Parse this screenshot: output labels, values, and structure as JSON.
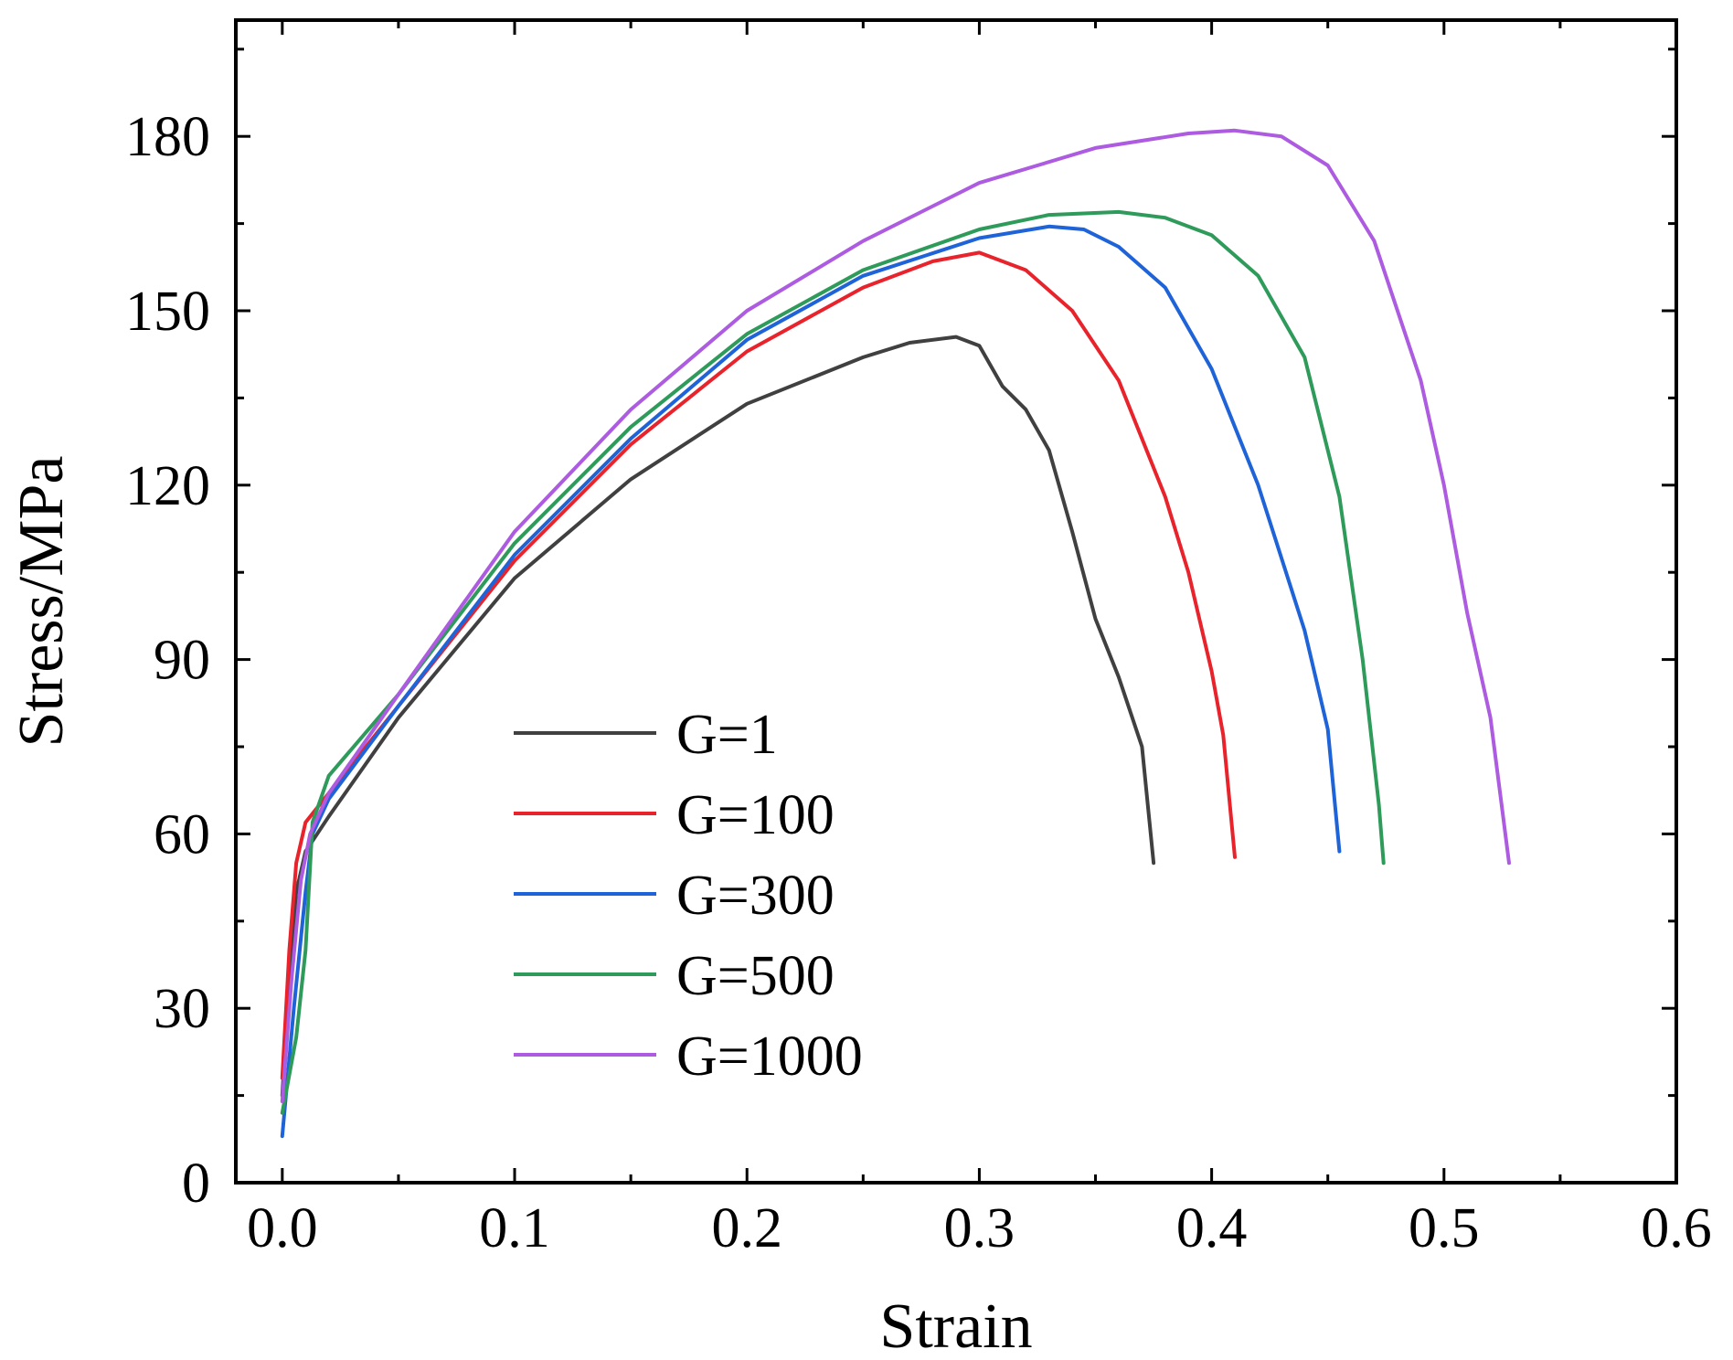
{
  "chart_data": {
    "type": "line",
    "title": "",
    "xlabel": "Strain",
    "ylabel": "Stress/MPa",
    "xlim": [
      -0.02,
      0.6
    ],
    "ylim": [
      0,
      200
    ],
    "xticks": [
      0.0,
      0.1,
      0.2,
      0.3,
      0.4,
      0.5,
      0.6
    ],
    "xtick_labels": [
      "0.0",
      "0.1",
      "0.2",
      "0.3",
      "0.4",
      "0.5",
      "0.6"
    ],
    "xminor": [
      0.05,
      0.15,
      0.25,
      0.35,
      0.45,
      0.55
    ],
    "yticks": [
      0,
      30,
      60,
      90,
      120,
      150,
      180
    ],
    "ytick_labels": [
      "0",
      "30",
      "60",
      "90",
      "120",
      "150",
      "180"
    ],
    "yminor": [
      15,
      45,
      75,
      105,
      135,
      165,
      195
    ],
    "grid": false,
    "legend_position": "lower-left-center",
    "series": [
      {
        "name": "G=1",
        "color": "#404040",
        "points": [
          [
            0,
            15
          ],
          [
            0.003,
            35
          ],
          [
            0.006,
            50
          ],
          [
            0.01,
            57
          ],
          [
            0.02,
            63
          ],
          [
            0.05,
            80
          ],
          [
            0.1,
            104
          ],
          [
            0.15,
            121
          ],
          [
            0.2,
            134
          ],
          [
            0.25,
            142
          ],
          [
            0.27,
            144.5
          ],
          [
            0.29,
            145.5
          ],
          [
            0.3,
            144
          ],
          [
            0.31,
            137
          ],
          [
            0.32,
            133
          ],
          [
            0.33,
            126
          ],
          [
            0.34,
            112
          ],
          [
            0.35,
            97
          ],
          [
            0.36,
            87
          ],
          [
            0.37,
            75
          ],
          [
            0.375,
            55
          ]
        ]
      },
      {
        "name": "G=100",
        "color": "#e8232b",
        "points": [
          [
            0,
            18
          ],
          [
            0.003,
            40
          ],
          [
            0.006,
            55
          ],
          [
            0.01,
            62
          ],
          [
            0.02,
            67
          ],
          [
            0.05,
            82
          ],
          [
            0.1,
            107
          ],
          [
            0.15,
            127
          ],
          [
            0.2,
            143
          ],
          [
            0.25,
            154
          ],
          [
            0.28,
            158.5
          ],
          [
            0.3,
            160
          ],
          [
            0.32,
            157
          ],
          [
            0.34,
            150
          ],
          [
            0.36,
            138
          ],
          [
            0.38,
            118
          ],
          [
            0.39,
            105
          ],
          [
            0.4,
            88
          ],
          [
            0.405,
            77
          ],
          [
            0.41,
            56
          ]
        ]
      },
      {
        "name": "G=300",
        "color": "#1f63d8",
        "points": [
          [
            0,
            8
          ],
          [
            0.005,
            30
          ],
          [
            0.01,
            50
          ],
          [
            0.013,
            60
          ],
          [
            0.02,
            66
          ],
          [
            0.05,
            82
          ],
          [
            0.1,
            108
          ],
          [
            0.15,
            128
          ],
          [
            0.2,
            145
          ],
          [
            0.25,
            156
          ],
          [
            0.3,
            162.5
          ],
          [
            0.33,
            164.5
          ],
          [
            0.345,
            164
          ],
          [
            0.36,
            161
          ],
          [
            0.38,
            154
          ],
          [
            0.4,
            140
          ],
          [
            0.42,
            120
          ],
          [
            0.44,
            95
          ],
          [
            0.45,
            78
          ],
          [
            0.455,
            57
          ]
        ]
      },
      {
        "name": "G=500",
        "color": "#2e9b5a",
        "points": [
          [
            0,
            12
          ],
          [
            0.006,
            25
          ],
          [
            0.01,
            40
          ],
          [
            0.013,
            62
          ],
          [
            0.02,
            70
          ],
          [
            0.05,
            84
          ],
          [
            0.1,
            110
          ],
          [
            0.15,
            130
          ],
          [
            0.2,
            146
          ],
          [
            0.25,
            157
          ],
          [
            0.3,
            164
          ],
          [
            0.33,
            166.5
          ],
          [
            0.36,
            167
          ],
          [
            0.38,
            166
          ],
          [
            0.4,
            163
          ],
          [
            0.42,
            156
          ],
          [
            0.44,
            142
          ],
          [
            0.455,
            118
          ],
          [
            0.465,
            90
          ],
          [
            0.472,
            65
          ],
          [
            0.474,
            55
          ]
        ]
      },
      {
        "name": "G=1000",
        "color": "#ad5be0",
        "points": [
          [
            0,
            14
          ],
          [
            0.004,
            35
          ],
          [
            0.008,
            52
          ],
          [
            0.012,
            60
          ],
          [
            0.02,
            67
          ],
          [
            0.05,
            84
          ],
          [
            0.1,
            112
          ],
          [
            0.15,
            133
          ],
          [
            0.2,
            150
          ],
          [
            0.25,
            162
          ],
          [
            0.3,
            172
          ],
          [
            0.35,
            178
          ],
          [
            0.39,
            180.5
          ],
          [
            0.41,
            181
          ],
          [
            0.43,
            180
          ],
          [
            0.45,
            175
          ],
          [
            0.47,
            162
          ],
          [
            0.49,
            138
          ],
          [
            0.5,
            120
          ],
          [
            0.51,
            98
          ],
          [
            0.52,
            80
          ],
          [
            0.528,
            55
          ]
        ]
      }
    ]
  }
}
